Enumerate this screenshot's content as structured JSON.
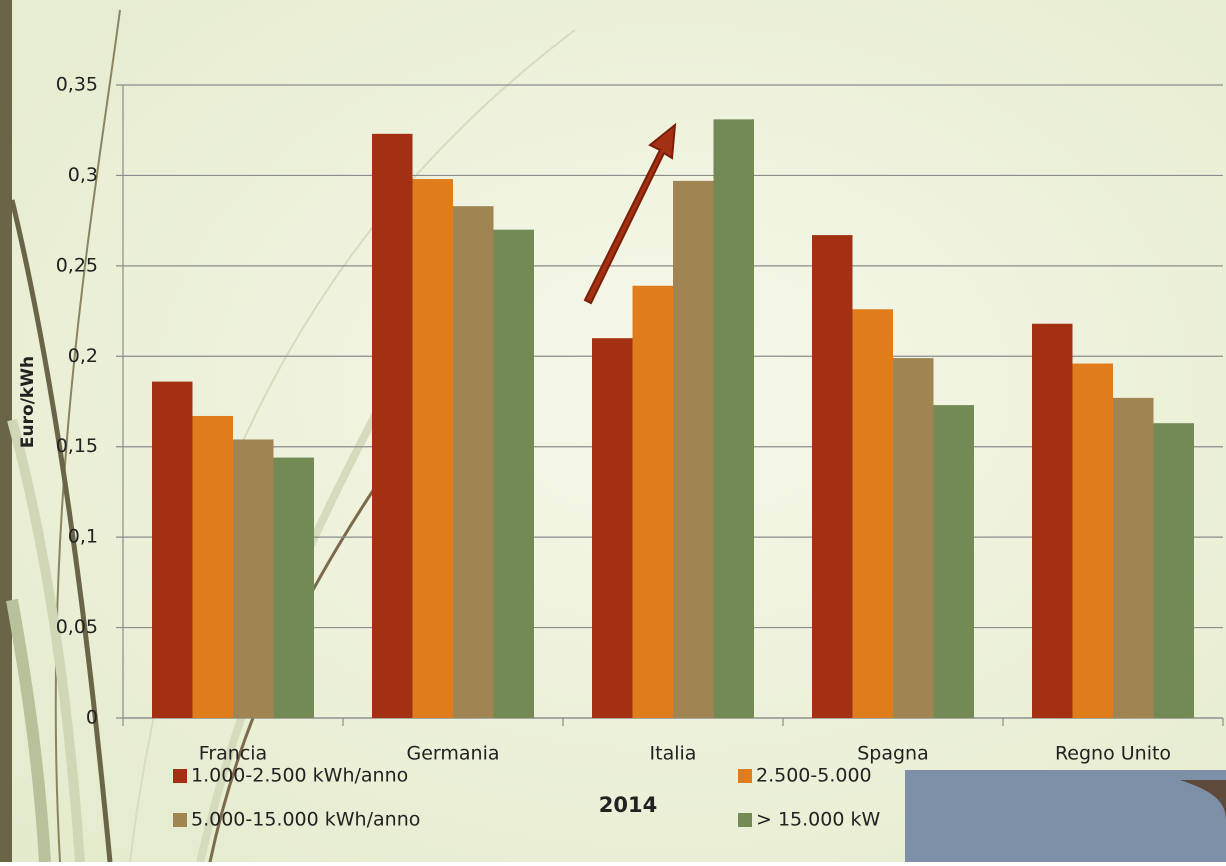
{
  "chart_data": {
    "type": "bar",
    "y_label": "Euro/kWh",
    "x_label": "2014",
    "categories": [
      "Francia",
      "Germania",
      "Italia",
      "Spagna",
      "Regno Unito"
    ],
    "series": [
      {
        "name": "1.000-2.500 kWh/anno",
        "color": "#a33012",
        "values": [
          0.186,
          0.323,
          0.21,
          0.267,
          0.218
        ]
      },
      {
        "name": "2.500-5.000",
        "color": "#df7d1c",
        "values": [
          0.167,
          0.298,
          0.239,
          0.226,
          0.196
        ]
      },
      {
        "name": "5.000-15.000 kWh/anno",
        "color": "#a08552",
        "values": [
          0.154,
          0.283,
          0.297,
          0.199,
          0.177
        ]
      },
      {
        "name": "> 15.000 kW",
        "color": "#748a55",
        "values": [
          0.144,
          0.27,
          0.331,
          0.173,
          0.163
        ]
      }
    ],
    "ylim": [
      0,
      0.35
    ],
    "yticks": [
      0,
      {
        "value": 0.05,
        "label": "0,05"
      },
      {
        "value": 0.1,
        "label": "0,1"
      },
      {
        "value": 0.15,
        "label": "0,15"
      },
      {
        "value": 0.2,
        "label": "0,2"
      },
      {
        "value": 0.25,
        "label": "0,25"
      },
      {
        "value": 0.3,
        "label": "0,3"
      },
      {
        "value": 0.35,
        "label": "0,35"
      }
    ],
    "grid": true
  }
}
